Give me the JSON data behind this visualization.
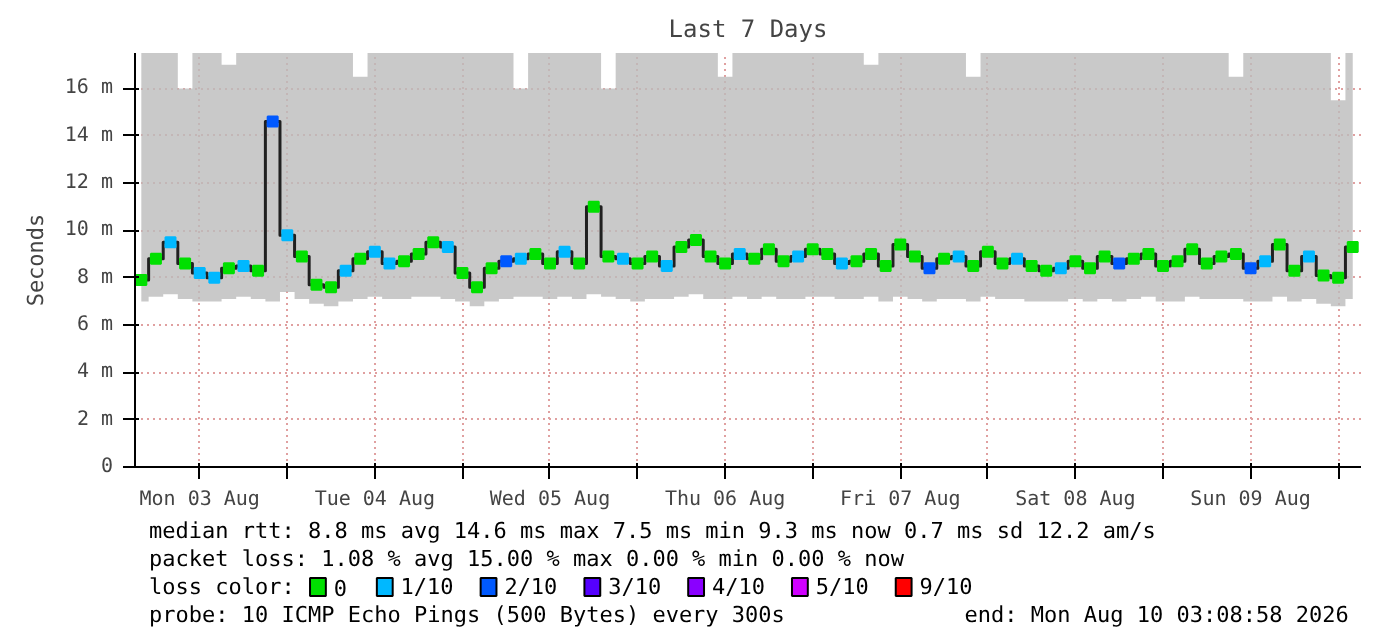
{
  "chart_data": {
    "type": "step",
    "title": "Last 7 Days",
    "ylabel": "Seconds",
    "x": [
      "2026-08-03T04:00",
      "2026-08-03T06:00",
      "2026-08-03T08:00",
      "2026-08-03T10:00",
      "2026-08-03T12:00",
      "2026-08-03T14:00",
      "2026-08-03T16:00",
      "2026-08-03T18:00",
      "2026-08-03T20:00",
      "2026-08-03T22:00",
      "2026-08-04T00:00",
      "2026-08-04T02:00",
      "2026-08-04T04:00",
      "2026-08-04T06:00",
      "2026-08-04T08:00",
      "2026-08-04T10:00",
      "2026-08-04T12:00",
      "2026-08-04T14:00",
      "2026-08-04T16:00",
      "2026-08-04T18:00",
      "2026-08-04T20:00",
      "2026-08-04T22:00",
      "2026-08-05T00:00",
      "2026-08-05T02:00",
      "2026-08-05T04:00",
      "2026-08-05T06:00",
      "2026-08-05T08:00",
      "2026-08-05T10:00",
      "2026-08-05T12:00",
      "2026-08-05T14:00",
      "2026-08-05T16:00",
      "2026-08-05T18:00",
      "2026-08-05T20:00",
      "2026-08-05T22:00",
      "2026-08-06T00:00",
      "2026-08-06T02:00",
      "2026-08-06T04:00",
      "2026-08-06T06:00",
      "2026-08-06T08:00",
      "2026-08-06T10:00",
      "2026-08-06T12:00",
      "2026-08-06T14:00",
      "2026-08-06T16:00",
      "2026-08-06T18:00",
      "2026-08-06T20:00",
      "2026-08-06T22:00",
      "2026-08-07T00:00",
      "2026-08-07T02:00",
      "2026-08-07T04:00",
      "2026-08-07T06:00",
      "2026-08-07T08:00",
      "2026-08-07T10:00",
      "2026-08-07T12:00",
      "2026-08-07T14:00",
      "2026-08-07T16:00",
      "2026-08-07T18:00",
      "2026-08-07T20:00",
      "2026-08-07T22:00",
      "2026-08-08T00:00",
      "2026-08-08T02:00",
      "2026-08-08T04:00",
      "2026-08-08T06:00",
      "2026-08-08T08:00",
      "2026-08-08T10:00",
      "2026-08-08T12:00",
      "2026-08-08T14:00",
      "2026-08-08T16:00",
      "2026-08-08T18:00",
      "2026-08-08T20:00",
      "2026-08-08T22:00",
      "2026-08-09T00:00",
      "2026-08-09T02:00",
      "2026-08-09T04:00",
      "2026-08-09T06:00",
      "2026-08-09T08:00",
      "2026-08-09T10:00",
      "2026-08-09T12:00",
      "2026-08-09T14:00",
      "2026-08-09T16:00",
      "2026-08-09T18:00",
      "2026-08-09T20:00",
      "2026-08-09T22:00",
      "2026-08-10T00:00",
      "2026-08-10T02:00"
    ],
    "xlim": [
      "2026-08-03T03:08",
      "2026-08-10T03:08"
    ],
    "xticks": [
      {
        "value": "2026-08-03T12:00",
        "label": "Mon 03 Aug"
      },
      {
        "value": "2026-08-04T00:00",
        "label": null
      },
      {
        "value": "2026-08-04T12:00",
        "label": "Tue 04 Aug"
      },
      {
        "value": "2026-08-05T00:00",
        "label": null
      },
      {
        "value": "2026-08-05T12:00",
        "label": "Wed 05 Aug"
      },
      {
        "value": "2026-08-06T00:00",
        "label": null
      },
      {
        "value": "2026-08-06T12:00",
        "label": "Thu 06 Aug"
      },
      {
        "value": "2026-08-07T00:00",
        "label": null
      },
      {
        "value": "2026-08-07T12:00",
        "label": "Fri 07 Aug"
      },
      {
        "value": "2026-08-08T00:00",
        "label": null
      },
      {
        "value": "2026-08-08T12:00",
        "label": "Sat 08 Aug"
      },
      {
        "value": "2026-08-09T00:00",
        "label": null
      },
      {
        "value": "2026-08-09T12:00",
        "label": "Sun 09 Aug"
      },
      {
        "value": "2026-08-10T00:00",
        "label": null
      }
    ],
    "ylim": [
      0,
      17.5
    ],
    "yticks": [
      0,
      {
        "value": 2,
        "label": "2 m"
      },
      {
        "value": 4,
        "label": "4 m"
      },
      {
        "value": 6,
        "label": "6 m"
      },
      {
        "value": 8,
        "label": "8 m"
      },
      {
        "value": 10,
        "label": "10 m"
      },
      {
        "value": 12,
        "label": "12 m"
      },
      {
        "value": 14,
        "label": "14 m"
      },
      {
        "value": 16,
        "label": "16 m"
      }
    ],
    "grid": true,
    "legend": "bottom",
    "legend_title": "loss color:",
    "series": [
      {
        "color": "#202020",
        "values": [
          7.9,
          8.8,
          9.5,
          8.6,
          8.2,
          8.0,
          8.4,
          8.5,
          8.3,
          14.6,
          9.8,
          8.9,
          7.7,
          7.6,
          8.3,
          8.8,
          9.1,
          8.6,
          8.7,
          9.0,
          9.5,
          9.3,
          8.2,
          7.6,
          8.4,
          8.7,
          8.8,
          9.0,
          8.6,
          9.1,
          8.6,
          11.0,
          8.9,
          8.8,
          8.6,
          8.9,
          8.5,
          9.3,
          9.6,
          8.9,
          8.6,
          9.0,
          8.8,
          9.2,
          8.7,
          8.9,
          9.2,
          9.0,
          8.6,
          8.7,
          9.0,
          8.5,
          9.4,
          8.9,
          8.4,
          8.8,
          8.9,
          8.5,
          9.1,
          8.6,
          8.8,
          8.5,
          8.3,
          8.4,
          8.7,
          8.4,
          8.9,
          8.6,
          8.8,
          9.0,
          8.5,
          8.7,
          9.2,
          8.6,
          8.9,
          9.0,
          8.4,
          8.7,
          9.4,
          8.3,
          8.9,
          8.1,
          8.0,
          9.3
        ],
        "lower": [
          7.0,
          7.2,
          7.3,
          7.1,
          7.0,
          7.0,
          7.1,
          7.2,
          7.1,
          7.0,
          7.4,
          7.1,
          6.9,
          6.8,
          7.0,
          7.1,
          7.2,
          7.1,
          7.1,
          7.2,
          7.2,
          7.1,
          7.0,
          6.8,
          7.0,
          7.1,
          7.2,
          7.2,
          7.1,
          7.2,
          7.1,
          7.3,
          7.2,
          7.1,
          7.0,
          7.1,
          7.1,
          7.2,
          7.3,
          7.1,
          7.1,
          7.2,
          7.1,
          7.2,
          7.1,
          7.1,
          7.2,
          7.2,
          7.1,
          7.1,
          7.2,
          7.0,
          7.2,
          7.1,
          7.0,
          7.1,
          7.1,
          7.0,
          7.2,
          7.1,
          7.1,
          7.0,
          7.0,
          7.0,
          7.1,
          7.0,
          7.1,
          7.0,
          7.1,
          7.2,
          7.0,
          7.0,
          7.2,
          7.1,
          7.1,
          7.1,
          7.0,
          7.0,
          7.2,
          7.0,
          7.1,
          6.9,
          6.8,
          7.1
        ],
        "upper": [
          17.5,
          17.5,
          17.5,
          16.0,
          17.5,
          17.5,
          17.0,
          17.5,
          17.5,
          17.5,
          17.5,
          17.5,
          17.5,
          17.5,
          17.5,
          16.5,
          17.5,
          17.5,
          17.5,
          17.5,
          17.5,
          17.5,
          17.5,
          17.5,
          17.5,
          17.5,
          16.0,
          17.5,
          17.5,
          17.5,
          17.5,
          17.5,
          16.0,
          17.5,
          17.5,
          17.5,
          17.5,
          17.5,
          17.5,
          17.5,
          16.5,
          17.5,
          17.5,
          17.5,
          17.5,
          17.5,
          17.5,
          17.5,
          17.5,
          17.5,
          17.0,
          17.5,
          17.5,
          17.5,
          17.5,
          17.5,
          17.5,
          16.5,
          17.5,
          17.5,
          17.5,
          17.5,
          17.5,
          17.5,
          17.5,
          17.5,
          17.5,
          17.5,
          17.5,
          17.5,
          17.5,
          17.5,
          17.5,
          17.5,
          17.5,
          16.5,
          17.5,
          17.5,
          17.5,
          17.5,
          17.5,
          17.5,
          15.5,
          17.5
        ]
      },
      {
        "name": "0",
        "type": "scatter",
        "marker": "square",
        "color": "#00e000",
        "values": [
          7.9,
          8.8,
          null,
          8.6,
          null,
          null,
          8.4,
          null,
          8.3,
          null,
          null,
          8.9,
          7.7,
          7.6,
          null,
          8.8,
          null,
          null,
          8.7,
          9.0,
          9.5,
          null,
          8.2,
          7.6,
          8.4,
          null,
          null,
          9.0,
          8.6,
          null,
          8.6,
          11.0,
          8.9,
          null,
          8.6,
          8.9,
          null,
          9.3,
          9.6,
          8.9,
          8.6,
          null,
          8.8,
          9.2,
          8.7,
          null,
          9.2,
          9.0,
          null,
          8.7,
          9.0,
          8.5,
          9.4,
          8.9,
          null,
          8.8,
          null,
          8.5,
          9.1,
          8.6,
          null,
          8.5,
          8.3,
          null,
          8.7,
          8.4,
          8.9,
          null,
          8.8,
          9.0,
          8.5,
          8.7,
          9.2,
          8.6,
          8.9,
          9.0,
          null,
          null,
          9.4,
          8.3,
          null,
          8.1,
          8.0,
          9.3
        ]
      },
      {
        "name": "1/10",
        "type": "scatter",
        "marker": "square",
        "color": "#00b8ff",
        "values": [
          null,
          null,
          9.5,
          null,
          8.2,
          8.0,
          null,
          8.5,
          null,
          null,
          9.8,
          null,
          null,
          null,
          8.3,
          null,
          9.1,
          8.6,
          null,
          null,
          null,
          9.3,
          null,
          null,
          null,
          null,
          8.8,
          null,
          null,
          9.1,
          null,
          null,
          null,
          8.8,
          null,
          null,
          8.5,
          null,
          null,
          null,
          null,
          9.0,
          null,
          null,
          null,
          8.9,
          null,
          null,
          8.6,
          null,
          null,
          null,
          null,
          null,
          null,
          null,
          8.9,
          null,
          null,
          null,
          8.8,
          null,
          null,
          8.4,
          null,
          null,
          null,
          null,
          null,
          null,
          null,
          null,
          null,
          null,
          null,
          null,
          null,
          8.7,
          null,
          null,
          8.9,
          null,
          null,
          null
        ]
      },
      {
        "name": "2/10",
        "type": "scatter",
        "marker": "square",
        "color": "#0059ff",
        "values": [
          null,
          null,
          null,
          null,
          null,
          null,
          null,
          null,
          null,
          14.6,
          null,
          null,
          null,
          null,
          null,
          null,
          null,
          null,
          null,
          null,
          null,
          null,
          null,
          null,
          null,
          8.7,
          null,
          null,
          null,
          null,
          null,
          null,
          null,
          null,
          null,
          null,
          null,
          null,
          null,
          null,
          null,
          null,
          null,
          null,
          null,
          null,
          null,
          null,
          null,
          null,
          null,
          null,
          null,
          null,
          8.4,
          null,
          null,
          null,
          null,
          null,
          null,
          null,
          null,
          null,
          null,
          null,
          null,
          8.6,
          null,
          null,
          null,
          null,
          null,
          null,
          null,
          null,
          8.4,
          null,
          null,
          null,
          null,
          null,
          null,
          null
        ]
      },
      {
        "name": "3/10",
        "type": "scatter",
        "marker": "square",
        "color": "#5500ff",
        "values": [
          null,
          null,
          null,
          null,
          null,
          null,
          null,
          null,
          null,
          null,
          null,
          null,
          null,
          null,
          null,
          null,
          null,
          null,
          null,
          null,
          null,
          null,
          null,
          null,
          null,
          null,
          null,
          null,
          null,
          null,
          null,
          null,
          null,
          null,
          null,
          null,
          null,
          null,
          null,
          null,
          null,
          null,
          null,
          null,
          null,
          null,
          null,
          null,
          null,
          null,
          null,
          null,
          null,
          null,
          null,
          null,
          null,
          null,
          null,
          null,
          null,
          null,
          null,
          null,
          null,
          null,
          null,
          null,
          null,
          null,
          null,
          null,
          null,
          null,
          null,
          null,
          null,
          null,
          null,
          null,
          null,
          null,
          null,
          null
        ]
      },
      {
        "name": "4/10",
        "type": "scatter",
        "marker": "square",
        "color": "#8a00ff",
        "values": [
          null,
          null,
          null,
          null,
          null,
          null,
          null,
          null,
          null,
          null,
          null,
          null,
          null,
          null,
          null,
          null,
          null,
          null,
          null,
          null,
          null,
          null,
          null,
          null,
          null,
          null,
          null,
          null,
          null,
          null,
          null,
          null,
          null,
          null,
          null,
          null,
          null,
          null,
          null,
          null,
          null,
          null,
          null,
          null,
          null,
          null,
          null,
          null,
          null,
          null,
          null,
          null,
          null,
          null,
          null,
          null,
          null,
          null,
          null,
          null,
          null,
          null,
          null,
          null,
          null,
          null,
          null,
          null,
          null,
          null,
          null,
          null,
          null,
          null,
          null,
          null,
          null,
          null,
          null,
          null,
          null,
          null,
          null,
          null
        ]
      },
      {
        "name": "5/10",
        "type": "scatter",
        "marker": "square",
        "color": "#d000ff",
        "values": [
          null,
          null,
          null,
          null,
          null,
          null,
          null,
          null,
          null,
          null,
          null,
          null,
          null,
          null,
          null,
          null,
          null,
          null,
          null,
          null,
          null,
          null,
          null,
          null,
          null,
          null,
          null,
          null,
          null,
          null,
          null,
          null,
          null,
          null,
          null,
          null,
          null,
          null,
          null,
          null,
          null,
          null,
          null,
          null,
          null,
          null,
          null,
          null,
          null,
          null,
          null,
          null,
          null,
          null,
          null,
          null,
          null,
          null,
          null,
          null,
          null,
          null,
          null,
          null,
          null,
          null,
          null,
          null,
          null,
          null,
          null,
          null,
          null,
          null,
          null,
          null,
          null,
          null,
          null,
          null,
          null,
          null,
          null,
          null
        ]
      },
      {
        "name": "9/10",
        "type": "scatter",
        "marker": "square",
        "color": "#ff0000",
        "values": [
          null,
          null,
          null,
          null,
          null,
          null,
          null,
          null,
          null,
          null,
          null,
          null,
          null,
          null,
          null,
          null,
          null,
          null,
          null,
          null,
          null,
          null,
          null,
          null,
          null,
          null,
          null,
          null,
          null,
          null,
          null,
          null,
          null,
          null,
          null,
          null,
          null,
          null,
          null,
          null,
          null,
          null,
          null,
          null,
          null,
          null,
          null,
          null,
          null,
          null,
          null,
          null,
          null,
          null,
          null,
          null,
          null,
          null,
          null,
          null,
          null,
          null,
          null,
          null,
          null,
          null,
          null,
          null,
          null,
          null,
          null,
          null,
          null,
          null,
          null,
          null,
          null,
          null,
          null,
          null,
          null,
          null,
          null,
          null
        ]
      }
    ],
    "annotations": [
      "median rtt:  8.8 ms avg  14.6 ms max   7.5 ms min   9.3 ms now   0.7 ms sd  12.2   am/s",
      "packet loss: 1.08 % avg  15.00 % max   0.00 % min   0.00 % now",
      "probe:       10 ICMP Echo Pings (500 Bytes) every 300s",
      "end: Mon Aug 10 03:08:58 2026"
    ]
  }
}
